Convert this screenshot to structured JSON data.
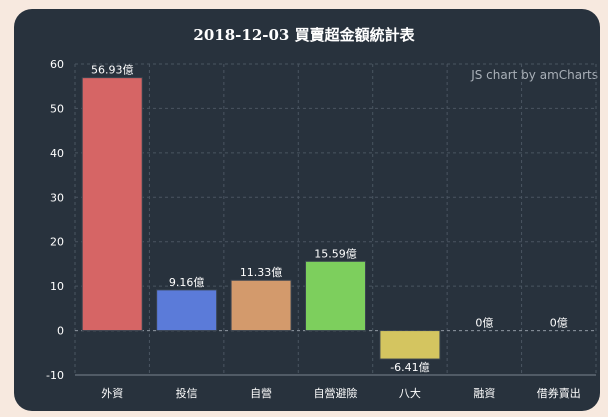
{
  "chart_data": {
    "type": "bar",
    "title": "2018-12-03 買賣超金額統計表",
    "watermark": "JS chart by amCharts",
    "categories": [
      "外資",
      "投信",
      "自營",
      "自營避險",
      "八大",
      "融資",
      "借券賣出"
    ],
    "values": [
      56.93,
      9.16,
      11.33,
      15.59,
      -6.41,
      0,
      0
    ],
    "value_labels": [
      "56.93億",
      "9.16億",
      "11.33億",
      "15.59億",
      "-6.41億",
      "0億",
      "0億"
    ],
    "colors": [
      "#d66565",
      "#5b7bd9",
      "#d39a6c",
      "#7dcf5d",
      "#d4c560",
      "#9aa0a6",
      "#9aa0a6"
    ],
    "ylim": [
      -10,
      60
    ],
    "yticks": [
      -10,
      0,
      10,
      20,
      30,
      40,
      50,
      60
    ],
    "grid": true,
    "xlabel": "",
    "ylabel": ""
  }
}
